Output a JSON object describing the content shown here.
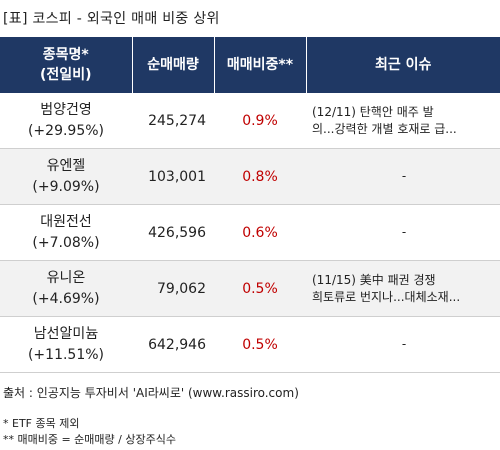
{
  "title": "[표] 코스피 - 외국인 매매 비중 상위",
  "columns": {
    "stock_line1": "종목명*",
    "stock_line2": "(전일비)",
    "volume": "순매매량",
    "ratio": "매매비중**",
    "issue": "최근 이슈"
  },
  "rows": [
    {
      "name": "범양건영",
      "change": "(+29.95%)",
      "volume": "245,274",
      "ratio": "0.9%",
      "issue_line1": "(12/11) 탄핵안 매주 발",
      "issue_line2": "의...강력한 개별 호재로 급..."
    },
    {
      "name": "유엔젤",
      "change": "(+9.09%)",
      "volume": "103,001",
      "ratio": "0.8%",
      "issue_line1": "-",
      "issue_line2": ""
    },
    {
      "name": "대원전선",
      "change": "(+7.08%)",
      "volume": "426,596",
      "ratio": "0.6%",
      "issue_line1": "-",
      "issue_line2": ""
    },
    {
      "name": "유니온",
      "change": "(+4.69%)",
      "volume": "79,062",
      "ratio": "0.5%",
      "issue_line1": "(11/15) 美中 패권 경쟁",
      "issue_line2": "희토류로 번지나...대체소재..."
    },
    {
      "name": "남선알미늄",
      "change": "(+11.51%)",
      "volume": "642,946",
      "ratio": "0.5%",
      "issue_line1": "-",
      "issue_line2": ""
    }
  ],
  "source": "출처 : 인공지능 투자비서 'AI라씨로' (www.rassiro.com)",
  "footnotes": {
    "etf": "* ETF 종목 제외",
    "ratio": "** 매매비중 = 순매매량 / 상장주식수"
  },
  "colors": {
    "header_bg": "#1f3864",
    "ratio_text": "#c00000",
    "row_shade": "#f2f2f2"
  }
}
